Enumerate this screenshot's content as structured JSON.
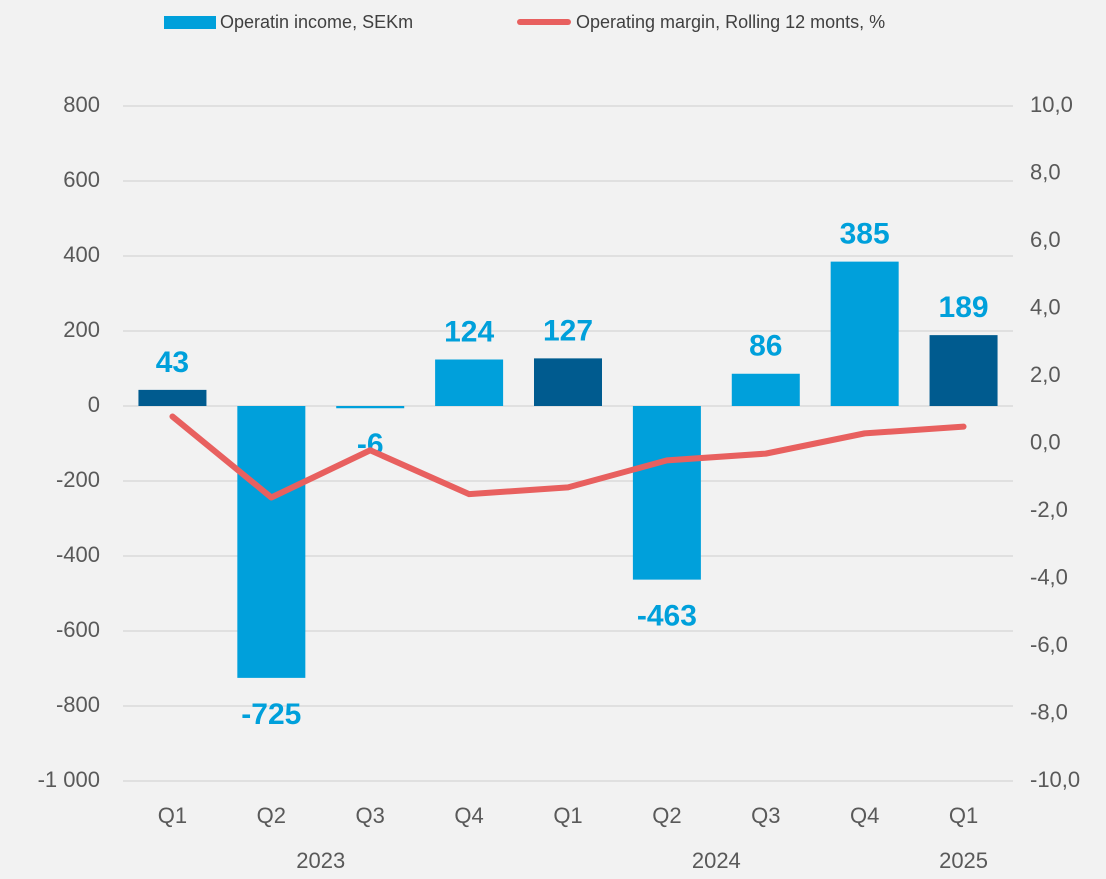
{
  "chart_data": {
    "type": "bar_line",
    "categories": [
      "Q1",
      "Q2",
      "Q3",
      "Q4",
      "Q1",
      "Q2",
      "Q3",
      "Q4",
      "Q1"
    ],
    "year_groups": [
      {
        "label": "2023",
        "span": 4
      },
      {
        "label": "2024",
        "span": 4
      },
      {
        "label": "2025",
        "span": 1
      }
    ],
    "series": [
      {
        "name": "Operatin income, SEKm",
        "type": "bar",
        "color": "#00a0db",
        "colors": [
          "#005b8f",
          "#00a0db",
          "#00a0db",
          "#00a0db",
          "#005b8f",
          "#00a0db",
          "#00a0db",
          "#00a0db",
          "#005b8f"
        ],
        "values": [
          43,
          -725,
          -6,
          124,
          127,
          -463,
          86,
          385,
          189
        ]
      },
      {
        "name": "Operating margin, Rolling 12 monts, %",
        "type": "line",
        "axis": "y2",
        "color": "#e8605f",
        "values": [
          0.8,
          -1.6,
          -0.2,
          -1.5,
          -1.3,
          -0.5,
          -0.3,
          0.3,
          0.5
        ]
      }
    ],
    "ylim": [
      -1000,
      800
    ],
    "yticks": [
      {
        "value": -1000,
        "label": "-1 000"
      },
      -800,
      -600,
      -400,
      -200,
      0,
      200,
      400,
      600,
      800
    ],
    "y2lim": [
      -10,
      10
    ],
    "y2ticks": [
      {
        "value": -10,
        "label": "-10,0"
      },
      {
        "value": -8,
        "label": "-8,0"
      },
      {
        "value": -6,
        "label": "-6,0"
      },
      {
        "value": -4,
        "label": "-4,0"
      },
      {
        "value": -2,
        "label": "-2,0"
      },
      {
        "value": 0,
        "label": "0,0"
      },
      {
        "value": 2,
        "label": "2,0"
      },
      {
        "value": 4,
        "label": "4,0"
      },
      {
        "value": 6,
        "label": "6,0"
      },
      {
        "value": 8,
        "label": "8,0"
      },
      {
        "value": 10,
        "label": "10,0"
      }
    ],
    "grid": true
  }
}
